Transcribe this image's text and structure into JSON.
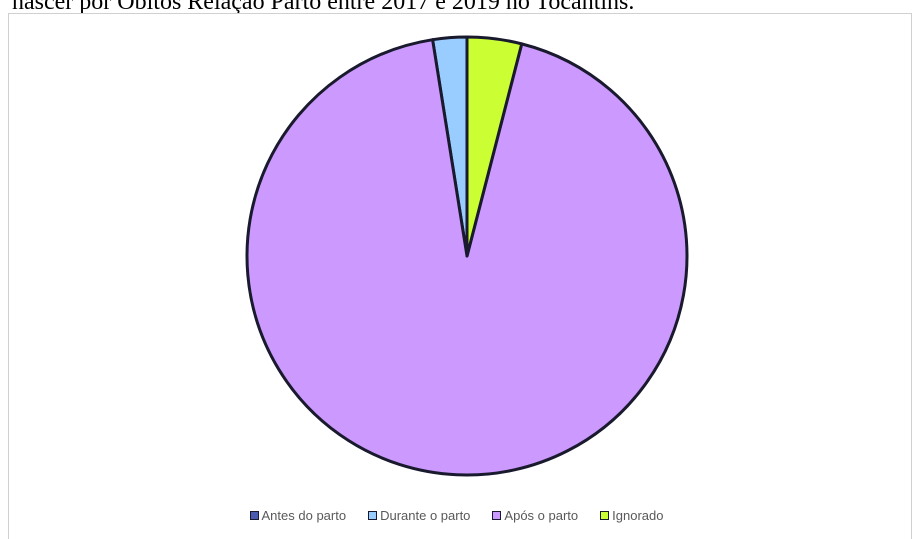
{
  "caption": {
    "text": "nascer por Óbitos Relação Parto entre 2017 e 2019 no Tocantins."
  },
  "chart_data": {
    "type": "pie",
    "title": "",
    "slices": [
      {
        "label": "Antes do parto",
        "value": 0.0,
        "color": "#4a5ab0"
      },
      {
        "label": "Durante o parto",
        "value": 2.5,
        "color": "#99ccff"
      },
      {
        "label": "Após o parto",
        "value": 93.5,
        "color": "#cc99ff"
      },
      {
        "label": "Ignorado",
        "value": 4.0,
        "color": "#ccff33"
      }
    ],
    "start_angle_deg": 0,
    "direction": "counterclockwise",
    "legend_position": "bottom",
    "outline_color": "#1a1a2e"
  }
}
